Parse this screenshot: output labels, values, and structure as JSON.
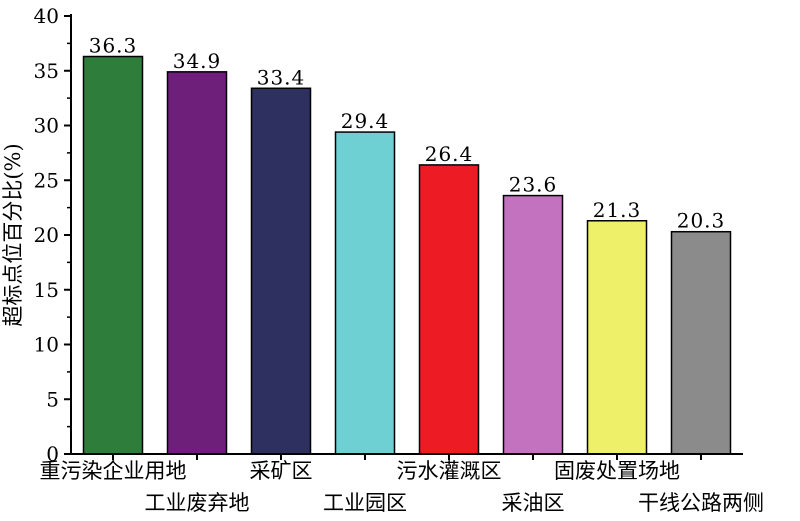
{
  "chart_data": {
    "type": "bar",
    "title": "",
    "xlabel": "",
    "ylabel": "超标点位百分比(%)",
    "ylim": [
      0,
      40
    ],
    "yticks": [
      0,
      5,
      10,
      15,
      20,
      25,
      30,
      35,
      40
    ],
    "grid": false,
    "legend": "none",
    "categories": [
      "重污染企业用地",
      "工业废弃地",
      "采矿区",
      "工业园区",
      "污水灌溉区",
      "采油区",
      "固废处置场地",
      "干线公路两侧"
    ],
    "values": [
      36.3,
      34.9,
      33.4,
      29.4,
      26.4,
      23.6,
      21.3,
      20.3
    ],
    "value_labels": [
      "36.3",
      "34.9",
      "33.4",
      "29.4",
      "26.4",
      "23.6",
      "21.3",
      "20.3"
    ],
    "colors": [
      "#2f7d3a",
      "#6e1f7a",
      "#2e3160",
      "#6fd0d3",
      "#ed1c24",
      "#c372c0",
      "#eef06a",
      "#8c8b8b"
    ]
  }
}
